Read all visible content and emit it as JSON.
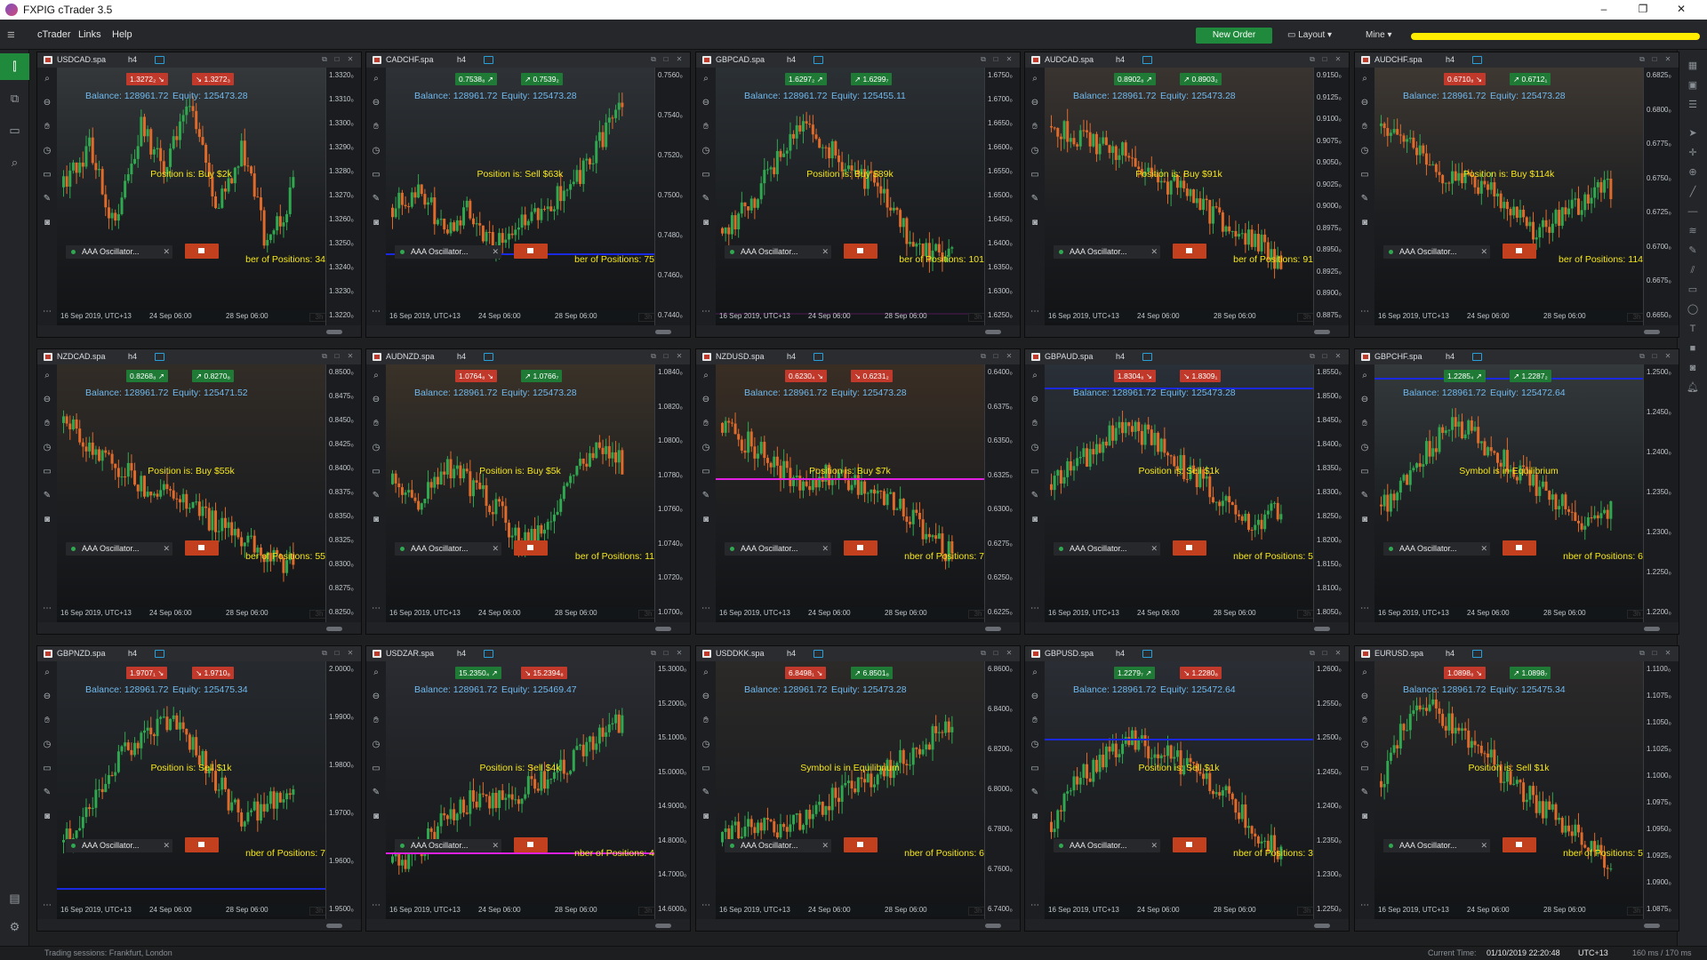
{
  "window": {
    "title": "FXPIG cTrader 3.5",
    "minimize": "–",
    "restore": "❐",
    "close": "✕"
  },
  "menu": {
    "items": [
      "cTrader",
      "Links",
      "Help"
    ],
    "new_order": "New Order",
    "layout": "Layout",
    "mine": "Mine"
  },
  "common": {
    "balance": "Balance: 128961.72",
    "indicator": "AAA Oscillator...",
    "timeframe": "h4",
    "badge": "3h",
    "dates": [
      "16 Sep 2019, UTC+13",
      "24 Sep 06:00",
      "28 Sep 06:00"
    ]
  },
  "colors": {
    "up": "#2fa84f",
    "down": "#e06a2a",
    "status": "#f5e61a",
    "blue_line": "#1a28e0",
    "magenta_line": "#e020e0",
    "accent": "#1f8a3c"
  },
  "panels": [
    {
      "symbol": "USDCAD.spa",
      "bid": "1.3272₂",
      "ask": "1.3272₃",
      "bid_dir": "down",
      "ask_dir": "down",
      "equity": "Equity: 125473.28",
      "status": "Position is: Buy $2k",
      "positions": "ber of Positions: 34",
      "prices": [
        "1.3320₀",
        "1.3310₀",
        "1.3300₀",
        "1.3290₀",
        "1.3280₀",
        "1.3270₀",
        "1.3260₀",
        "1.3250₀",
        "1.3240₀",
        "1.3230₀",
        "1.3220₀"
      ],
      "trend": [
        0.5,
        0.3,
        0.7,
        0.2,
        0.4,
        0.1,
        0.6,
        0.3,
        0.8,
        0.5
      ],
      "hline": null,
      "bg": "#34383a"
    },
    {
      "symbol": "CADCHF.spa",
      "bid": "0.7538₈",
      "ask": "0.7539₂",
      "bid_dir": "up",
      "ask_dir": "up",
      "equity": "Equity: 125473.28",
      "status": "Position is: Sell $63k",
      "positions": "ber of Positions: 75",
      "prices": [
        "0.7560₀",
        "0.7540₀",
        "0.7520₀",
        "0.7500₀",
        "0.7480₀",
        "0.7460₀",
        "0.7440₀"
      ],
      "trend": [
        0.6,
        0.5,
        0.7,
        0.6,
        0.8,
        0.7,
        0.6,
        0.5,
        0.3,
        0.1
      ],
      "hline": {
        "color": "blue",
        "at": 0.72
      },
      "bg": "#2e3236"
    },
    {
      "symbol": "GBPCAD.spa",
      "bid": "1.6297₂",
      "ask": "1.6299₇",
      "bid_dir": "up",
      "ask_dir": "up",
      "equity": "Equity: 125455.11",
      "status": "Position is: Buy $89k",
      "positions": "ber of Positions: 101",
      "prices": [
        "1.6750₀",
        "1.6700₀",
        "1.6650₀",
        "1.6600₀",
        "1.6550₀",
        "1.6500₀",
        "1.6450₀",
        "1.6400₀",
        "1.6350₀",
        "1.6300₀",
        "1.6250₀"
      ],
      "trend": [
        0.7,
        0.6,
        0.4,
        0.2,
        0.3,
        0.4,
        0.5,
        0.7,
        0.8,
        0.85
      ],
      "hline": {
        "color": "magenta",
        "at": 0.95
      },
      "bg": "#2b3034"
    },
    {
      "symbol": "AUDCAD.spa",
      "bid": "0.8902₈",
      "ask": "0.8903₂",
      "bid_dir": "up",
      "ask_dir": "up",
      "equity": "Equity: 125473.28",
      "status": "Position is: Buy $91k",
      "positions": "ber of Positions: 91",
      "prices": [
        "0.9150₀",
        "0.9125₀",
        "0.9100₀",
        "0.9075₀",
        "0.9050₀",
        "0.9025₀",
        "0.9000₀",
        "0.8975₀",
        "0.8950₀",
        "0.8925₀",
        "0.8900₀",
        "0.8875₀"
      ],
      "trend": [
        0.2,
        0.25,
        0.3,
        0.35,
        0.45,
        0.5,
        0.6,
        0.7,
        0.75,
        0.9
      ],
      "hline": null,
      "bg": "#3a3430"
    },
    {
      "symbol": "AUDCHF.spa",
      "bid": "0.6710₈",
      "ask": "0.6712₁",
      "bid_dir": "down",
      "ask_dir": "up",
      "equity": "Equity: 125473.28",
      "status": "Position is: Buy $114k",
      "positions": "ber of Positions: 114",
      "prices": [
        "0.6825₀",
        "0.6800₀",
        "0.6775₀",
        "0.6750₀",
        "0.6725₀",
        "0.6700₀",
        "0.6675₀",
        "0.6650₀"
      ],
      "trend": [
        0.2,
        0.3,
        0.4,
        0.45,
        0.5,
        0.6,
        0.7,
        0.65,
        0.55,
        0.5
      ],
      "hline": null,
      "bg": "#3e3832"
    },
    {
      "symbol": "NZDCAD.spa",
      "bid": "0.8268₈",
      "ask": "0.8270₈",
      "bid_dir": "up",
      "ask_dir": "up",
      "equity": "Equity: 125471.52",
      "status": "Position is: Buy $55k",
      "positions": "ber of Positions: 55",
      "prices": [
        "0.8500₀",
        "0.8475₀",
        "0.8450₀",
        "0.8425₀",
        "0.8400₀",
        "0.8375₀",
        "0.8350₀",
        "0.8325₀",
        "0.8300₀",
        "0.8275₀",
        "0.8250₀"
      ],
      "trend": [
        0.2,
        0.3,
        0.4,
        0.5,
        0.55,
        0.6,
        0.7,
        0.75,
        0.85,
        0.9
      ],
      "hline": null,
      "bg": "#322c26"
    },
    {
      "symbol": "AUDNZD.spa",
      "bid": "1.0764₈",
      "ask": "1.0766₇",
      "bid_dir": "down",
      "ask_dir": "up",
      "equity": "Equity: 125473.28",
      "status": "Position is: Buy $5k",
      "positions": "ber of Positions: 11",
      "prices": [
        "1.0840₀",
        "1.0820₀",
        "1.0800₀",
        "1.0780₀",
        "1.0760₀",
        "1.0740₀",
        "1.0720₀",
        "1.0700₀"
      ],
      "trend": [
        0.5,
        0.6,
        0.4,
        0.5,
        0.6,
        0.8,
        0.7,
        0.5,
        0.3,
        0.4
      ],
      "hline": null,
      "bg": "#3a3228"
    },
    {
      "symbol": "NZDUSD.spa",
      "bid": "0.6230₄",
      "ask": "0.6231₂",
      "bid_dir": "down",
      "ask_dir": "down",
      "equity": "Equity: 125473.28",
      "status": "Position is: Buy $7k",
      "positions": "nber of Positions: 7",
      "prices": [
        "0.6400₀",
        "0.6375₀",
        "0.6350₀",
        "0.6325₀",
        "0.6300₀",
        "0.6275₀",
        "0.6250₀",
        "0.6225₀"
      ],
      "trend": [
        0.2,
        0.3,
        0.4,
        0.5,
        0.45,
        0.5,
        0.55,
        0.6,
        0.75,
        0.85
      ],
      "hline": {
        "color": "magenta",
        "at": 0.44
      },
      "bg": "#3a2e24"
    },
    {
      "symbol": "GBPAUD.spa",
      "bid": "1.8304₈",
      "ask": "1.8309₁",
      "bid_dir": "down",
      "ask_dir": "down",
      "equity": "Equity: 125473.28",
      "status": "Position is: Sell $1k",
      "positions": "nber of Positions: 5",
      "prices": [
        "1.8550₀",
        "1.8500₀",
        "1.8450₀",
        "1.8400₀",
        "1.8350₀",
        "1.8300₀",
        "1.8250₀",
        "1.8200₀",
        "1.8150₀",
        "1.8100₀",
        "1.8050₀"
      ],
      "trend": [
        0.5,
        0.4,
        0.3,
        0.2,
        0.3,
        0.4,
        0.5,
        0.6,
        0.7,
        0.6
      ],
      "hline": {
        "color": "blue",
        "at": 0.09
      },
      "bg": "#2a3038"
    },
    {
      "symbol": "GBPCHF.spa",
      "bid": "1.2285₄",
      "ask": "1.2287₂",
      "bid_dir": "up",
      "ask_dir": "up",
      "equity": "Equity: 125472.64",
      "status": "Symbol is in Equilibrium",
      "positions": "nber of Positions: 6",
      "prices": [
        "1.2500₀",
        "1.2450₀",
        "1.2400₀",
        "1.2350₀",
        "1.2300₀",
        "1.2250₀",
        "1.2200₀"
      ],
      "trend": [
        0.6,
        0.5,
        0.3,
        0.2,
        0.3,
        0.4,
        0.5,
        0.6,
        0.7,
        0.6
      ],
      "hline": {
        "color": "blue",
        "at": 0.05
      },
      "bg": "#343a3c"
    },
    {
      "symbol": "GBPNZD.spa",
      "bid": "1.9707₁",
      "ask": "1.9710₈",
      "bid_dir": "down",
      "ask_dir": "down",
      "equity": "Equity: 125475.34",
      "status": "Position is: Sell $1k",
      "positions": "nber of Positions: 7",
      "prices": [
        "2.0000₀",
        "1.9900₀",
        "1.9800₀",
        "1.9700₀",
        "1.9600₀",
        "1.9500₀"
      ],
      "trend": [
        0.8,
        0.6,
        0.4,
        0.3,
        0.2,
        0.3,
        0.5,
        0.7,
        0.6,
        0.5
      ],
      "hline": {
        "color": "blue",
        "at": 0.88
      },
      "bg": "#262a2e"
    },
    {
      "symbol": "USDZAR.spa",
      "bid": "15.2350₄",
      "ask": "15.2394₈",
      "bid_dir": "up",
      "ask_dir": "down",
      "equity": "Equity: 125469.47",
      "status": "Position is: Sell $4k",
      "positions": "nber of Positions: 4",
      "prices": [
        "15.3000₀",
        "15.2000₀",
        "15.1000₀",
        "15.0000₀",
        "14.9000₀",
        "14.8000₀",
        "14.7000₀",
        "14.6000₀"
      ],
      "trend": [
        0.9,
        0.85,
        0.7,
        0.6,
        0.6,
        0.55,
        0.5,
        0.4,
        0.3,
        0.2
      ],
      "hline": {
        "color": "magenta",
        "at": 0.74
      },
      "bg": "#2a2c32"
    },
    {
      "symbol": "USDDKK.spa",
      "bid": "6.8498₁",
      "ask": "6.8501₈",
      "bid_dir": "down",
      "ask_dir": "up",
      "equity": "Equity: 125473.28",
      "status": "Symbol is in Equilibrium",
      "positions": "nber of Positions: 6",
      "prices": [
        "6.8600₀",
        "6.8400₀",
        "6.8200₀",
        "6.8000₀",
        "6.7800₀",
        "6.7600₀",
        "6.7400₀"
      ],
      "trend": [
        0.8,
        0.7,
        0.75,
        0.7,
        0.6,
        0.55,
        0.5,
        0.4,
        0.3,
        0.2
      ],
      "hline": null,
      "bg": "#2c2a28"
    },
    {
      "symbol": "GBPUSD.spa",
      "bid": "1.2279₇",
      "ask": "1.2280₈",
      "bid_dir": "up",
      "ask_dir": "down",
      "equity": "Equity: 125472.64",
      "status": "Position is: Sell $1k",
      "positions": "nber of Positions: 3",
      "prices": [
        "1.2600₀",
        "1.2550₀",
        "1.2500₀",
        "1.2450₀",
        "1.2400₀",
        "1.2350₀",
        "1.2300₀",
        "1.2250₀"
      ],
      "trend": [
        0.7,
        0.5,
        0.4,
        0.3,
        0.35,
        0.4,
        0.5,
        0.6,
        0.75,
        0.85
      ],
      "hline": {
        "color": "blue",
        "at": 0.3
      },
      "bg": "#2a2e34"
    },
    {
      "symbol": "EURUSD.spa",
      "bid": "1.0898₈",
      "ask": "1.0898₇",
      "bid_dir": "down",
      "ask_dir": "up",
      "equity": "Equity: 125475.34",
      "status": "Position is: Sell $1k",
      "positions": "nber of Positions: 5",
      "prices": [
        "1.1100₀",
        "1.1075₀",
        "1.1050₀",
        "1.1025₀",
        "1.1000₀",
        "1.0975₀",
        "1.0950₀",
        "1.0925₀",
        "1.0900₀",
        "1.0875₀"
      ],
      "trend": [
        0.5,
        0.2,
        0.15,
        0.25,
        0.35,
        0.5,
        0.6,
        0.7,
        0.8,
        0.9
      ],
      "hline": null,
      "bg": "#2c2a2a"
    }
  ],
  "status": {
    "sessions": "Trading sessions:  Frankfurt, London",
    "current_time_label": "Current Time:",
    "current_time": "01/10/2019 22:20:48",
    "tz": "UTC+13",
    "latency": "160 ms / 170 ms"
  }
}
